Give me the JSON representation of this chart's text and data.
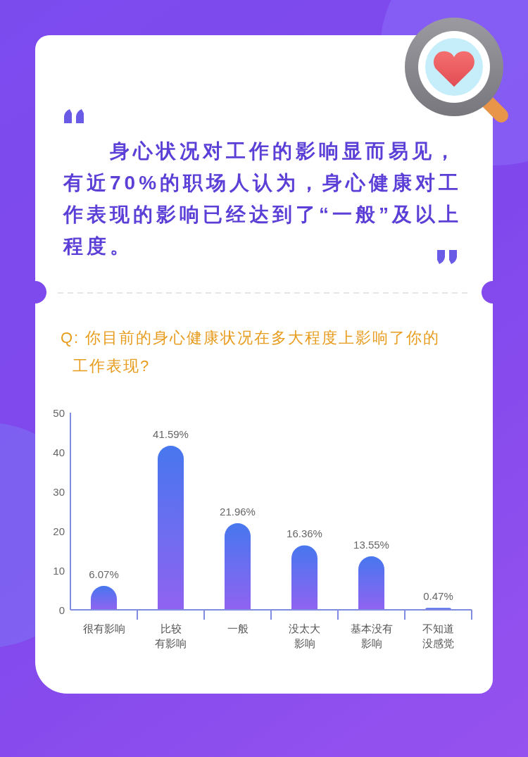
{
  "chart_data": {
    "type": "bar",
    "title": "身心状况对工作的影响显而易见，有近70%的职场人认为，身心健康对工作表现的影响已经达到了“一般”及以上程度。",
    "subtitle": "Q: 你目前的身心健康状况在多大程度上影响了你的工作表现?",
    "categories": [
      "很有影响",
      "比较有影响",
      "一般",
      "没太大影响",
      "基本没有影响",
      "不知道没感觉"
    ],
    "values": [
      6.07,
      41.59,
      21.96,
      16.36,
      13.55,
      0.47
    ],
    "value_labels": [
      "6.07%",
      "41.59%",
      "21.96%",
      "16.36%",
      "13.55%",
      "0.47%"
    ],
    "color": "#5a62f0",
    "ylim": [
      0,
      50
    ],
    "yticks": [
      0,
      10,
      20,
      30,
      40,
      50
    ]
  }
}
